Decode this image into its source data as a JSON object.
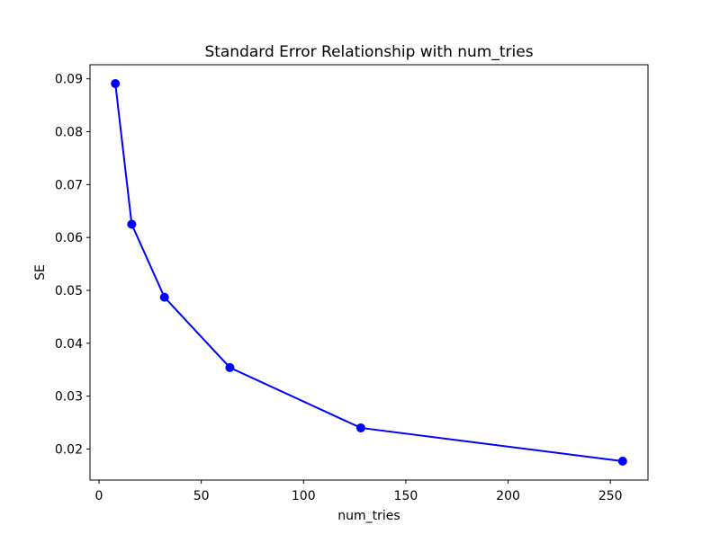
{
  "chart_data": {
    "type": "line",
    "title": "Standard Error Relationship with num_tries",
    "xlabel": "num_tries",
    "ylabel": "SE",
    "x": [
      8,
      16,
      32,
      64,
      128,
      256
    ],
    "y": [
      0.0891,
      0.0625,
      0.0487,
      0.0354,
      0.024,
      0.0177
    ],
    "series": [
      {
        "name": "SE",
        "x": [
          8,
          16,
          32,
          64,
          128,
          256
        ],
        "values": [
          0.0891,
          0.0625,
          0.0487,
          0.0354,
          0.024,
          0.0177
        ]
      }
    ],
    "xlim": [
      -4.4,
      268.4
    ],
    "ylim": [
      0.01413,
      0.09267
    ],
    "xticks": [
      0,
      50,
      100,
      150,
      200,
      250
    ],
    "xtick_labels": [
      "0",
      "50",
      "100",
      "150",
      "200",
      "250"
    ],
    "yticks": [
      0.02,
      0.03,
      0.04,
      0.05,
      0.06,
      0.07,
      0.08,
      0.09
    ],
    "ytick_labels": [
      "0.02",
      "0.03",
      "0.04",
      "0.05",
      "0.06",
      "0.07",
      "0.08",
      "0.09"
    ],
    "grid": false,
    "legend": "none",
    "line_color": "#0000ff",
    "marker": "circle",
    "marker_color": "#0000ff",
    "frame_color": "#000000",
    "background_color": "#ffffff"
  }
}
